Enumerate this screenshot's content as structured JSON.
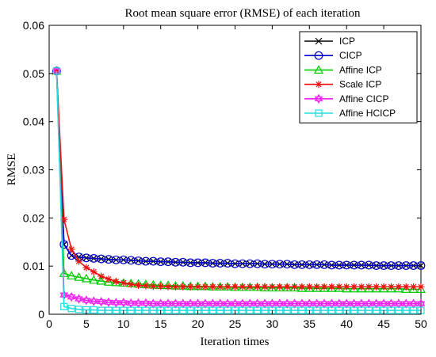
{
  "chart_data": {
    "type": "line",
    "title": "Root mean square error (RMSE) of each iteration",
    "xlabel": "Iteration times",
    "ylabel": "RMSE",
    "xlim": [
      0,
      50
    ],
    "ylim": [
      0,
      0.06
    ],
    "xticks": [
      "0",
      "5",
      "10",
      "15",
      "20",
      "25",
      "30",
      "35",
      "40",
      "45",
      "50"
    ],
    "yticks": [
      "0",
      "0.01",
      "0.02",
      "0.03",
      "0.04",
      "0.05",
      "0.06"
    ],
    "grid": false,
    "legend_position": "top-right",
    "x": [
      1,
      2,
      3,
      4,
      5,
      6,
      7,
      8,
      9,
      10,
      11,
      12,
      13,
      14,
      15,
      16,
      17,
      18,
      19,
      20,
      21,
      22,
      23,
      24,
      25,
      26,
      27,
      28,
      29,
      30,
      31,
      32,
      33,
      34,
      35,
      36,
      37,
      38,
      39,
      40,
      41,
      42,
      43,
      44,
      45,
      46,
      47,
      48,
      49,
      50
    ],
    "series": [
      {
        "name": "ICP",
        "color": "#000000",
        "marker": "x",
        "values": [
          0.0505,
          0.0145,
          0.0122,
          0.0119,
          0.0117,
          0.0116,
          0.0115,
          0.0114,
          0.0113,
          0.0113,
          0.0112,
          0.0111,
          0.011,
          0.011,
          0.0109,
          0.0109,
          0.0108,
          0.0108,
          0.0107,
          0.0107,
          0.0107,
          0.0106,
          0.0106,
          0.0106,
          0.0105,
          0.0105,
          0.0105,
          0.0105,
          0.0104,
          0.0104,
          0.0104,
          0.0104,
          0.0103,
          0.0103,
          0.0103,
          0.0103,
          0.0103,
          0.0102,
          0.0102,
          0.0102,
          0.0102,
          0.0102,
          0.0102,
          0.0101,
          0.0101,
          0.0101,
          0.0101,
          0.0101,
          0.0101,
          0.0101
        ]
      },
      {
        "name": "CICP",
        "color": "#0000cc",
        "marker": "o",
        "values": [
          0.0505,
          0.0145,
          0.0122,
          0.0119,
          0.0117,
          0.0116,
          0.0115,
          0.0114,
          0.0113,
          0.0113,
          0.0112,
          0.0111,
          0.011,
          0.011,
          0.0109,
          0.0109,
          0.0108,
          0.0108,
          0.0107,
          0.0107,
          0.0107,
          0.0106,
          0.0106,
          0.0106,
          0.0105,
          0.0105,
          0.0105,
          0.0105,
          0.0104,
          0.0104,
          0.0104,
          0.0104,
          0.0103,
          0.0103,
          0.0103,
          0.0103,
          0.0103,
          0.0102,
          0.0102,
          0.0102,
          0.0102,
          0.0102,
          0.0102,
          0.0101,
          0.0101,
          0.0101,
          0.0101,
          0.0101,
          0.0101,
          0.0101
        ]
      },
      {
        "name": "Affine ICP",
        "color": "#00cc00",
        "marker": "triangle",
        "values": [
          0.0505,
          0.0085,
          0.008,
          0.0077,
          0.0074,
          0.0071,
          0.0069,
          0.0067,
          0.0066,
          0.0065,
          0.0064,
          0.0063,
          0.0062,
          0.0061,
          0.006,
          0.006,
          0.0059,
          0.0059,
          0.0058,
          0.0058,
          0.0058,
          0.0057,
          0.0057,
          0.0057,
          0.0056,
          0.0056,
          0.0056,
          0.0056,
          0.0055,
          0.0055,
          0.0055,
          0.0055,
          0.0055,
          0.0054,
          0.0054,
          0.0054,
          0.0054,
          0.0054,
          0.0054,
          0.0053,
          0.0053,
          0.0053,
          0.0053,
          0.0053,
          0.0053,
          0.0053,
          0.0053,
          0.0052,
          0.0052,
          0.0052
        ]
      },
      {
        "name": "Scale ICP",
        "color": "#ee1111",
        "marker": "*",
        "values": [
          0.0505,
          0.0197,
          0.0135,
          0.011,
          0.0097,
          0.0088,
          0.0079,
          0.0073,
          0.0068,
          0.0065,
          0.0062,
          0.006,
          0.0059,
          0.0058,
          0.0058,
          0.0057,
          0.0057,
          0.0057,
          0.0057,
          0.0057,
          0.0057,
          0.0057,
          0.0057,
          0.0057,
          0.0057,
          0.0057,
          0.0057,
          0.0057,
          0.0057,
          0.0057,
          0.0057,
          0.0057,
          0.0057,
          0.0057,
          0.0057,
          0.0057,
          0.0057,
          0.0057,
          0.0057,
          0.0057,
          0.0057,
          0.0057,
          0.0057,
          0.0057,
          0.0057,
          0.0057,
          0.0057,
          0.0057,
          0.0057,
          0.0057
        ]
      },
      {
        "name": "Affine CICP",
        "color": "#ee22ee",
        "marker": "hexagram",
        "values": [
          0.0505,
          0.004,
          0.0036,
          0.0032,
          0.0029,
          0.0027,
          0.0026,
          0.0025,
          0.0024,
          0.0024,
          0.0023,
          0.0023,
          0.0023,
          0.0022,
          0.0022,
          0.0022,
          0.0022,
          0.0022,
          0.0022,
          0.0022,
          0.0022,
          0.0022,
          0.0022,
          0.0022,
          0.0022,
          0.0022,
          0.0022,
          0.0022,
          0.0022,
          0.0022,
          0.0022,
          0.0022,
          0.0022,
          0.0022,
          0.0022,
          0.0022,
          0.0022,
          0.0022,
          0.0022,
          0.0022,
          0.0022,
          0.0022,
          0.0022,
          0.0022,
          0.0022,
          0.0022,
          0.0022,
          0.0022,
          0.0022,
          0.0022
        ]
      },
      {
        "name": "Affine HCICP",
        "color": "#22dddd",
        "marker": "square",
        "values": [
          0.0505,
          0.0016,
          0.0012,
          0.001,
          0.0009,
          0.0009,
          0.0008,
          0.0008,
          0.0008,
          0.0008,
          0.0008,
          0.0008,
          0.0008,
          0.0008,
          0.0008,
          0.0008,
          0.0008,
          0.0008,
          0.0008,
          0.0008,
          0.0008,
          0.0008,
          0.0008,
          0.0008,
          0.0008,
          0.0008,
          0.0008,
          0.0008,
          0.0008,
          0.0008,
          0.0008,
          0.0008,
          0.0008,
          0.0008,
          0.0008,
          0.0008,
          0.0008,
          0.0008,
          0.0008,
          0.0008,
          0.0008,
          0.0008,
          0.0008,
          0.0008,
          0.0008,
          0.0008,
          0.0008,
          0.0008,
          0.0008,
          0.0008
        ]
      }
    ]
  }
}
